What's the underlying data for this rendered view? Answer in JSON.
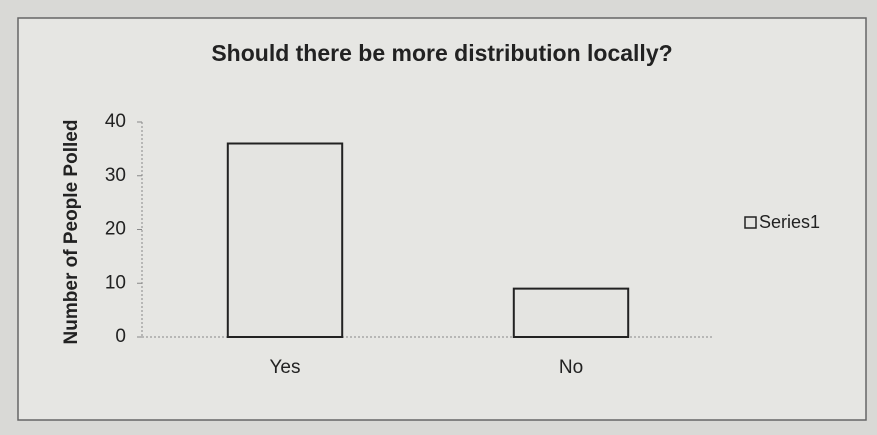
{
  "chart_data": {
    "type": "bar",
    "title": "Should there be more distribution locally?",
    "y_label": "Number of People Polled",
    "categories": [
      "Yes",
      "No"
    ],
    "series": [
      {
        "name": "Series1",
        "color": "#e4e4e1",
        "values": [
          36,
          9
        ]
      }
    ],
    "ylim": [
      0,
      40
    ],
    "yticks": [
      0,
      10,
      20,
      30,
      40
    ],
    "grid": false,
    "legend": "right"
  }
}
